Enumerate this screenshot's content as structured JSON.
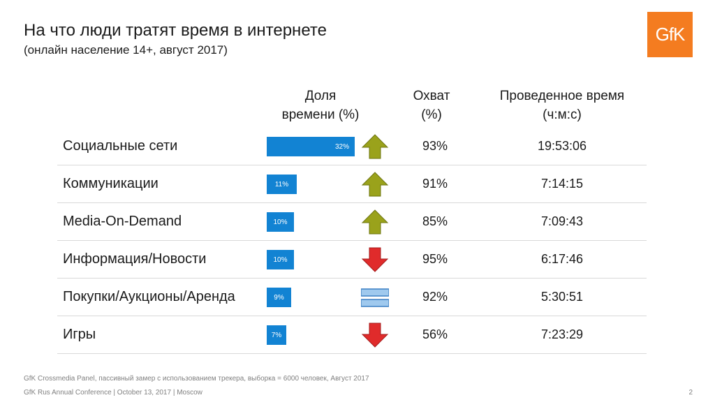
{
  "title": "На что люди тратят время в интернете",
  "subtitle": "(онлайн население 14+, август 2017)",
  "logo_text": "GfK",
  "colors": {
    "bar": "#1283d3",
    "up": "#9aa21b",
    "down": "#e02b2b",
    "flat": "#9fc9ee",
    "logo": "#f47c20"
  },
  "chart_data": {
    "type": "table",
    "columns": {
      "share": "Доля\nвремени (%)",
      "reach": "Охват\n(%)",
      "time": "Проведенное время\n(ч:м:с)"
    },
    "share_max": 32,
    "rows": [
      {
        "category": "Социальные сети",
        "share": 32,
        "share_label": "32%",
        "trend": "up",
        "reach": "93%",
        "time": "19:53:06"
      },
      {
        "category": "Коммуникации",
        "share": 11,
        "share_label": "11%",
        "trend": "up",
        "reach": "91%",
        "time": "7:14:15"
      },
      {
        "category": "Media-On-Demand",
        "share": 10,
        "share_label": "10%",
        "trend": "up",
        "reach": "85%",
        "time": "7:09:43"
      },
      {
        "category": "Информация/Новости",
        "share": 10,
        "share_label": "10%",
        "trend": "down",
        "reach": "95%",
        "time": "6:17:46"
      },
      {
        "category": "Покупки/Аукционы/Аренда",
        "share": 9,
        "share_label": "9%",
        "trend": "flat",
        "reach": "92%",
        "time": "5:30:51"
      },
      {
        "category": "Игры",
        "share": 7,
        "share_label": "7%",
        "trend": "down",
        "reach": "56%",
        "time": "7:23:29"
      }
    ]
  },
  "footnote": "GfK Crossmedia Panel, пассивный замер с использованием трекера, выборка = 6000 человек, Август 2017",
  "footer": "GfK Rus Annual Conference | October 13, 2017 | Moscow",
  "page_number": "2"
}
